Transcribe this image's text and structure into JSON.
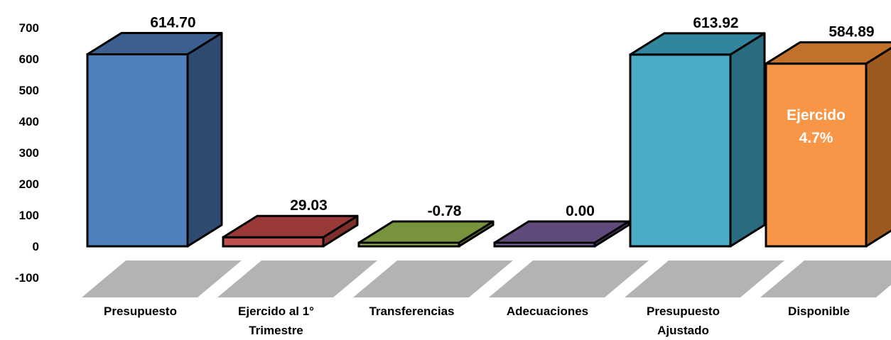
{
  "chart_data": {
    "type": "bar",
    "categories": [
      "Presupuesto",
      "Ejercido al 1° Trimestre",
      "Transferencias",
      "Adecuaciones",
      "Presupuesto Ajustado",
      "Disponible"
    ],
    "category_lines": [
      [
        "Presupuesto"
      ],
      [
        "Ejercido al 1°",
        "Trimestre"
      ],
      [
        "Transferencias"
      ],
      [
        "Adecuaciones"
      ],
      [
        "Presupuesto",
        "Ajustado"
      ],
      [
        "Disponible"
      ]
    ],
    "values": [
      614.7,
      29.03,
      -0.78,
      0.0,
      613.92,
      584.89
    ],
    "data_labels": [
      "614.70",
      "29.03",
      "-0.78",
      "0.00",
      "613.92",
      "584.89"
    ],
    "ylim": [
      -100,
      700
    ],
    "yticks": [
      -100,
      0,
      100,
      200,
      300,
      400,
      500,
      600,
      700
    ],
    "ytick_labels": [
      "-100",
      "0",
      "100",
      "200",
      "300",
      "400",
      "500",
      "600",
      "700"
    ],
    "annotation": {
      "bar": "Disponible",
      "lines": [
        "Ejercido",
        "4.7%"
      ]
    },
    "colors": {
      "front": [
        "#4f81bd",
        "#c0504d",
        "#9bbb59",
        "#8064a2",
        "#4bacc6",
        "#f79646"
      ],
      "top": [
        "#3b5f8f",
        "#9a3a38",
        "#77933c",
        "#604a7b",
        "#31859c",
        "#c0712b"
      ],
      "side": [
        "#2e4a70",
        "#7e2f2d",
        "#5f7530",
        "#4d3b63",
        "#296c80",
        "#9c5a20"
      ],
      "shadow": "#a6a6a6"
    },
    "grid": false,
    "legend": "none"
  }
}
